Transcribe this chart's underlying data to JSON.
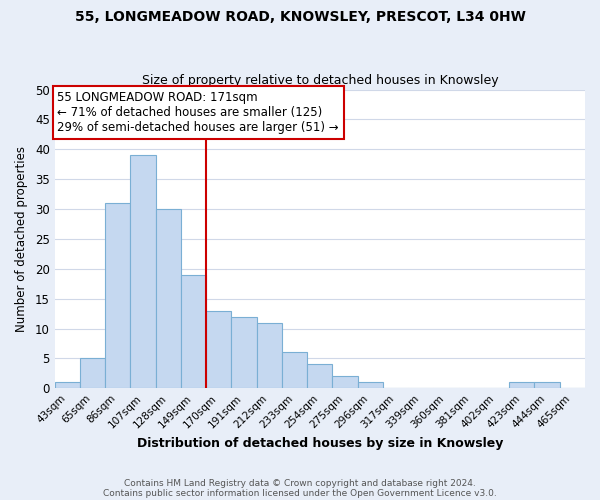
{
  "title": "55, LONGMEADOW ROAD, KNOWSLEY, PRESCOT, L34 0HW",
  "subtitle": "Size of property relative to detached houses in Knowsley",
  "xlabel": "Distribution of detached houses by size in Knowsley",
  "ylabel": "Number of detached properties",
  "bin_labels": [
    "43sqm",
    "65sqm",
    "86sqm",
    "107sqm",
    "128sqm",
    "149sqm",
    "170sqm",
    "191sqm",
    "212sqm",
    "233sqm",
    "254sqm",
    "275sqm",
    "296sqm",
    "317sqm",
    "339sqm",
    "360sqm",
    "381sqm",
    "402sqm",
    "423sqm",
    "444sqm",
    "465sqm"
  ],
  "bar_heights": [
    1,
    5,
    31,
    39,
    30,
    19,
    13,
    12,
    11,
    6,
    4,
    2,
    1,
    0,
    0,
    0,
    0,
    0,
    1,
    1,
    0
  ],
  "bar_color": "#c5d8f0",
  "bar_edge_color": "#7aafd4",
  "vline_x_index": 6,
  "vline_color": "#cc0000",
  "ylim": [
    0,
    50
  ],
  "yticks": [
    0,
    5,
    10,
    15,
    20,
    25,
    30,
    35,
    40,
    45,
    50
  ],
  "annotation_title": "55 LONGMEADOW ROAD: 171sqm",
  "annotation_line1": "← 71% of detached houses are smaller (125)",
  "annotation_line2": "29% of semi-detached houses are larger (51) →",
  "annotation_box_color": "#ffffff",
  "annotation_box_edge": "#cc0000",
  "footer1": "Contains HM Land Registry data © Crown copyright and database right 2024.",
  "footer2": "Contains public sector information licensed under the Open Government Licence v3.0.",
  "fig_background_color": "#e8eef8",
  "plot_background_color": "#ffffff",
  "grid_color": "#d0d8e8"
}
